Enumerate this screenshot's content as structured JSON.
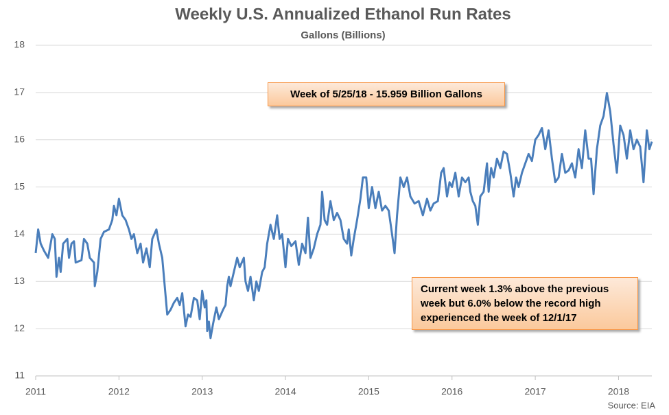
{
  "chart_data": {
    "type": "line",
    "title": "Weekly U.S. Annualized Ethanol Run Rates",
    "subtitle": "Gallons (Billions)",
    "source": "Source: EIA",
    "annotations": [
      "Week of 5/25/18 - 15.959 Billion Gallons",
      "Current week 1.3% above the previous week but 6.0% below the record high experienced the week of 12/1/17"
    ],
    "color": "#4a7ebb",
    "xlim": [
      2011,
      2018.4
    ],
    "xticks": [
      2011,
      2012,
      2013,
      2014,
      2015,
      2016,
      2017,
      2018
    ],
    "ylim": [
      11,
      18
    ],
    "yticks": [
      11,
      12,
      13,
      14,
      15,
      16,
      17,
      18
    ],
    "grid": true,
    "x": [
      2011.0,
      2011.03,
      2011.06,
      2011.1,
      2011.15,
      2011.2,
      2011.23,
      2011.25,
      2011.28,
      2011.3,
      2011.33,
      2011.38,
      2011.4,
      2011.43,
      2011.46,
      2011.48,
      2011.55,
      2011.58,
      2011.62,
      2011.65,
      2011.7,
      2011.71,
      2011.74,
      2011.78,
      2011.82,
      2011.88,
      2011.92,
      2011.94,
      2011.97,
      2012.0,
      2012.04,
      2012.08,
      2012.12,
      2012.15,
      2012.18,
      2012.22,
      2012.26,
      2012.29,
      2012.33,
      2012.37,
      2012.4,
      2012.45,
      2012.48,
      2012.52,
      2012.55,
      2012.58,
      2012.62,
      2012.66,
      2012.7,
      2012.73,
      2012.76,
      2012.8,
      2012.83,
      2012.86,
      2012.9,
      2012.94,
      2012.97,
      2013.0,
      2013.03,
      2013.05,
      2013.06,
      2013.08,
      2013.1,
      2013.13,
      2013.17,
      2013.2,
      2013.25,
      2013.28,
      2013.3,
      2013.32,
      2013.34,
      2013.38,
      2013.42,
      2013.45,
      2013.5,
      2013.52,
      2013.55,
      2013.58,
      2013.62,
      2013.65,
      2013.68,
      2013.72,
      2013.75,
      2013.78,
      2013.82,
      2013.86,
      2013.9,
      2013.93,
      2013.96,
      2014.0,
      2014.03,
      2014.07,
      2014.12,
      2014.16,
      2014.2,
      2014.24,
      2014.27,
      2014.3,
      2014.34,
      2014.38,
      2014.42,
      2014.44,
      2014.47,
      2014.5,
      2014.54,
      2014.58,
      2014.62,
      2014.66,
      2014.7,
      2014.74,
      2014.76,
      2014.79,
      2014.82,
      2014.86,
      2014.9,
      2014.93,
      2014.97,
      2015.0,
      2015.04,
      2015.08,
      2015.12,
      2015.16,
      2015.2,
      2015.24,
      2015.28,
      2015.31,
      2015.34,
      2015.38,
      2015.42,
      2015.46,
      2015.5,
      2015.55,
      2015.6,
      2015.65,
      2015.7,
      2015.74,
      2015.78,
      2015.83,
      2015.87,
      2015.9,
      2015.94,
      2015.97,
      2016.0,
      2016.04,
      2016.08,
      2016.12,
      2016.16,
      2016.2,
      2016.22,
      2016.25,
      2016.28,
      2016.31,
      2016.34,
      2016.38,
      2016.42,
      2016.44,
      2016.47,
      2016.5,
      2016.54,
      2016.58,
      2016.62,
      2016.66,
      2016.7,
      2016.74,
      2016.77,
      2016.8,
      2016.84,
      2016.88,
      2016.92,
      2016.96,
      2017.0,
      2017.04,
      2017.08,
      2017.12,
      2017.16,
      2017.2,
      2017.24,
      2017.28,
      2017.32,
      2017.36,
      2017.4,
      2017.44,
      2017.48,
      2017.52,
      2017.56,
      2017.6,
      2017.64,
      2017.67,
      2017.7,
      2017.74,
      2017.78,
      2017.82,
      2017.86,
      2017.9,
      2017.94,
      2017.98,
      2018.02,
      2018.06,
      2018.1,
      2018.14,
      2018.18,
      2018.22,
      2018.26,
      2018.3,
      2018.34,
      2018.37,
      2018.4
    ],
    "values": [
      13.6,
      14.1,
      13.8,
      13.65,
      13.5,
      14.0,
      13.9,
      13.1,
      13.5,
      13.2,
      13.8,
      13.9,
      13.5,
      13.8,
      13.85,
      13.4,
      13.45,
      13.9,
      13.8,
      13.5,
      13.4,
      12.9,
      13.2,
      13.9,
      14.05,
      14.1,
      14.3,
      14.6,
      14.4,
      14.75,
      14.4,
      14.3,
      14.1,
      13.9,
      14.0,
      13.6,
      13.8,
      13.4,
      13.7,
      13.3,
      13.9,
      14.1,
      13.8,
      13.5,
      12.9,
      12.3,
      12.4,
      12.55,
      12.65,
      12.5,
      12.75,
      12.05,
      12.3,
      12.25,
      12.65,
      12.6,
      12.2,
      12.8,
      12.45,
      12.6,
      11.95,
      12.15,
      11.8,
      12.1,
      12.45,
      12.2,
      12.4,
      12.5,
      12.9,
      13.1,
      12.9,
      13.2,
      13.5,
      13.3,
      13.5,
      13.0,
      12.8,
      13.1,
      12.6,
      13.0,
      12.8,
      13.2,
      13.3,
      13.8,
      14.2,
      13.9,
      14.4,
      13.9,
      14.0,
      13.3,
      13.9,
      13.75,
      13.85,
      13.35,
      13.8,
      13.6,
      14.35,
      13.5,
      13.7,
      14.0,
      14.2,
      14.9,
      14.3,
      14.2,
      14.7,
      14.3,
      14.45,
      14.3,
      13.9,
      13.8,
      14.1,
      13.55,
      13.9,
      14.3,
      14.75,
      15.2,
      15.2,
      14.55,
      15.0,
      14.55,
      14.9,
      14.5,
      14.6,
      14.5,
      14.0,
      13.6,
      14.4,
      15.2,
      15.0,
      15.2,
      14.8,
      14.65,
      14.7,
      14.4,
      14.75,
      14.5,
      14.65,
      14.7,
      15.3,
      15.4,
      14.8,
      15.1,
      15.0,
      15.3,
      14.8,
      15.2,
      15.1,
      15.2,
      14.9,
      14.7,
      14.6,
      14.2,
      14.8,
      14.9,
      15.5,
      14.9,
      15.4,
      15.2,
      15.6,
      15.4,
      15.75,
      15.7,
      15.3,
      14.8,
      15.2,
      15.0,
      15.3,
      15.5,
      15.7,
      15.55,
      16.0,
      16.1,
      16.25,
      15.8,
      16.2,
      15.6,
      15.1,
      15.2,
      15.7,
      15.3,
      15.35,
      15.5,
      15.2,
      15.8,
      15.4,
      16.2,
      15.6,
      15.6,
      14.85,
      15.8,
      16.3,
      16.5,
      16.99,
      16.6,
      15.9,
      15.3,
      16.3,
      16.1,
      15.6,
      16.2,
      15.8,
      16.0,
      15.85,
      15.1,
      16.2,
      15.8,
      15.96
    ]
  }
}
